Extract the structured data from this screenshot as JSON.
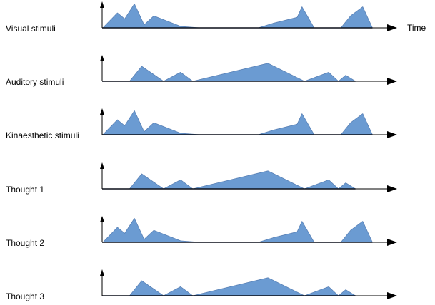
{
  "x_axis_label": "Time",
  "colors": {
    "fill": "#6b9bd2",
    "outline": "#5b82b6",
    "axis": "#000000",
    "baseline": "#1f2d4d"
  },
  "chart_data": {
    "type": "area",
    "x": "time",
    "profiles": {
      "A": [
        [
          0,
          0
        ],
        [
          6,
          5
        ],
        [
          9,
          3
        ],
        [
          13,
          8
        ],
        [
          17,
          1
        ],
        [
          21,
          4
        ],
        [
          32,
          0.5
        ],
        [
          40,
          0
        ],
        [
          64,
          0
        ],
        [
          70,
          1.5
        ],
        [
          80,
          3.5
        ],
        [
          82,
          7
        ],
        [
          87,
          0
        ],
        [
          98,
          0
        ],
        [
          102,
          4
        ],
        [
          107,
          7
        ],
        [
          111,
          0
        ]
      ],
      "B": [
        [
          0,
          0
        ],
        [
          11,
          0
        ],
        [
          16,
          5
        ],
        [
          25,
          0
        ],
        [
          32,
          3
        ],
        [
          37,
          0
        ],
        [
          68,
          6
        ],
        [
          83,
          0
        ],
        [
          93,
          3
        ],
        [
          97,
          0
        ],
        [
          100,
          2
        ],
        [
          104,
          0
        ]
      ]
    },
    "rows": [
      {
        "label": "Visual stimuli",
        "profile": "A"
      },
      {
        "label": "Auditory stimuli",
        "profile": "B"
      },
      {
        "label": "Kinaesthetic stimuli",
        "profile": "A"
      },
      {
        "label": "Thought 1",
        "profile": "B"
      },
      {
        "label": "Thought 2",
        "profile": "A"
      },
      {
        "label": "Thought 3",
        "profile": "B"
      }
    ]
  }
}
